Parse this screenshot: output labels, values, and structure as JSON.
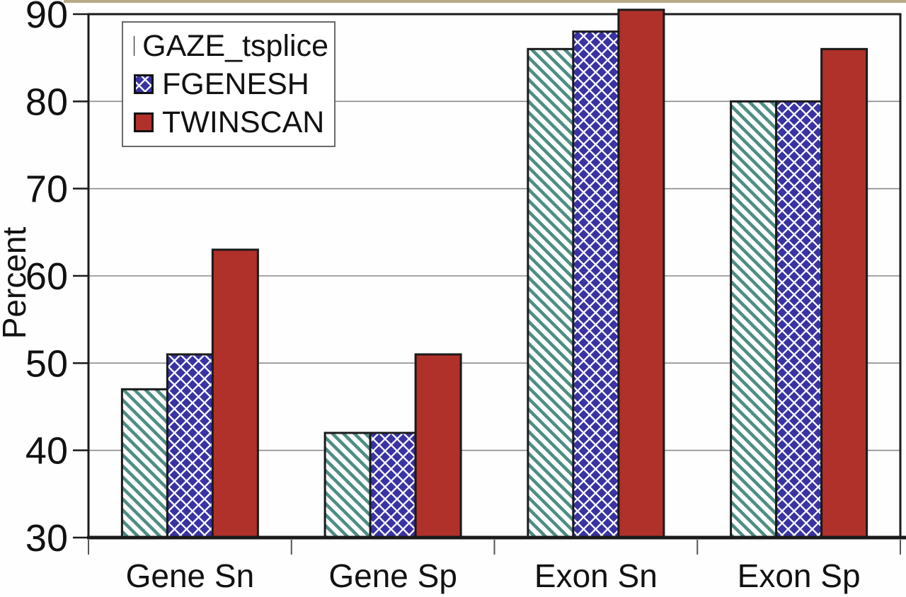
{
  "colors": {
    "axis": "#1a1a1a",
    "grid": "#8a8a8a",
    "tick": "#555555",
    "text": "#111111",
    "background": "#fefefe",
    "legend_border": "#6a6a6a",
    "scan_edge": "#a59468"
  },
  "chart_data": {
    "type": "bar",
    "title": "",
    "ylabel": "Percent",
    "xlabel": "",
    "categories": [
      "Gene Sn",
      "Gene Sp",
      "Exon Sn",
      "Exon Sp"
    ],
    "series": [
      {
        "name": "GAZE_tsplice",
        "fill_style": "stripes",
        "color": "#4d8d84",
        "values": [
          47,
          42,
          86,
          80
        ]
      },
      {
        "name": "FGENESH",
        "fill_style": "diamonds",
        "color": "#3a33a3",
        "values": [
          51,
          42,
          88,
          80
        ]
      },
      {
        "name": "TWINSCAN",
        "fill_style": "solid",
        "color": "#b0312a",
        "values": [
          63,
          51,
          90.5,
          86
        ]
      }
    ],
    "ylim": [
      30,
      90
    ],
    "yticks": [
      30,
      40,
      50,
      60,
      70,
      80,
      90
    ],
    "grid": true,
    "legend_position": "top-left"
  }
}
